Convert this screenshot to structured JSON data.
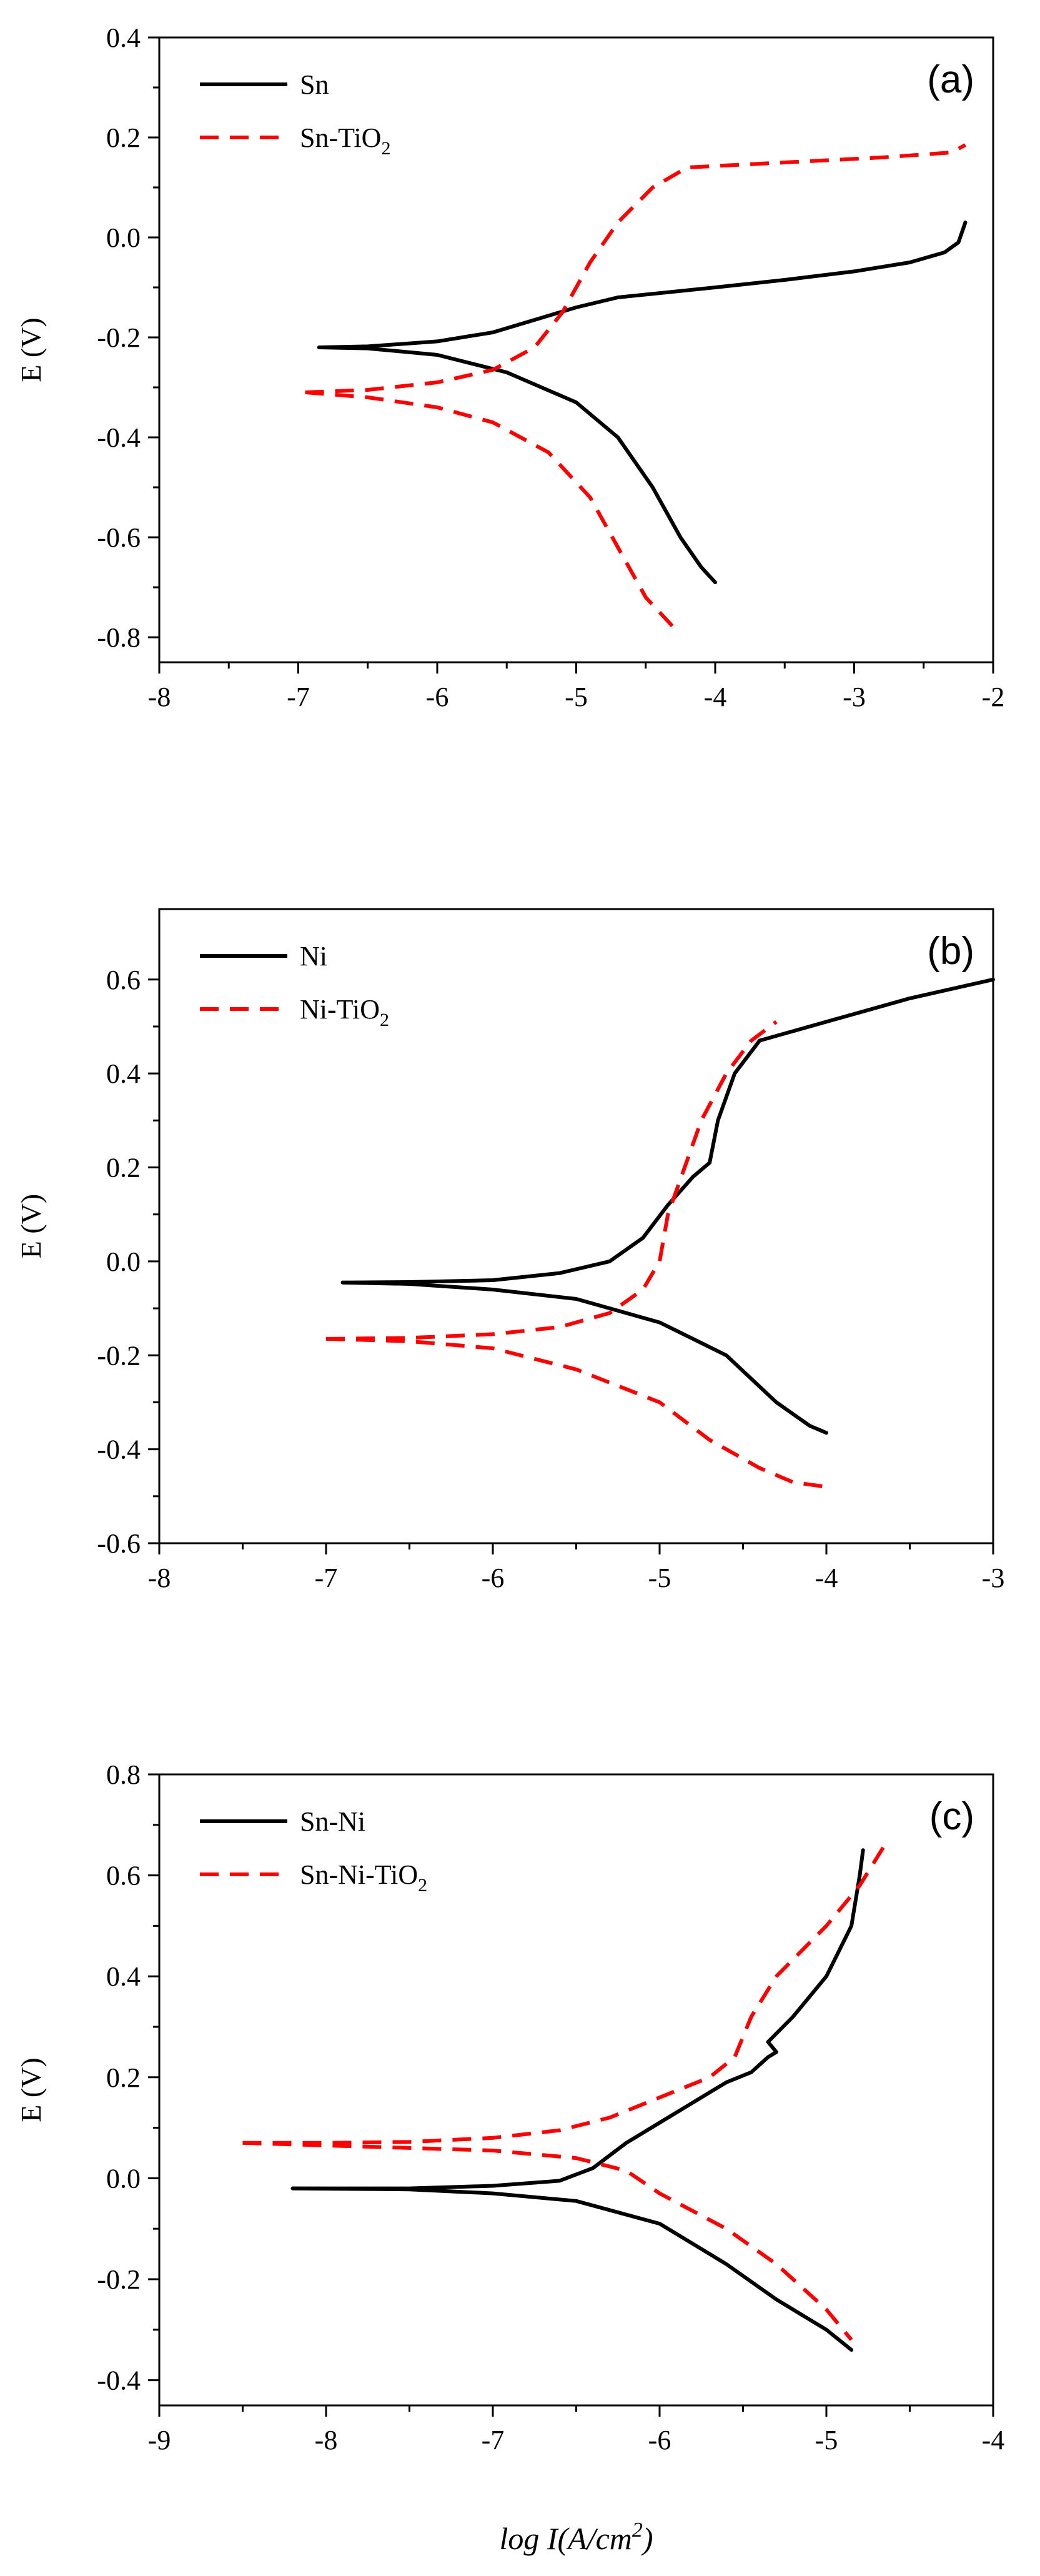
{
  "chart_data": [
    {
      "type": "line",
      "panel_label": "(a)",
      "xlabel": "",
      "ylabel": "E (V)",
      "xlim": [
        -8,
        -2
      ],
      "ylim": [
        -0.85,
        0.4
      ],
      "xticks": [
        -8,
        -7,
        -6,
        -5,
        -4,
        -3,
        -2
      ],
      "yticks": [
        0.4,
        0.2,
        0.0,
        -0.2,
        -0.4,
        -0.6,
        -0.8
      ],
      "xtick_labels": [
        "-8",
        "-7",
        "-6",
        "-5",
        "-4",
        "-3",
        "-2"
      ],
      "ytick_labels": [
        "0.4",
        "0.2",
        "0.0",
        "-0.2",
        "-0.4",
        "-0.6",
        "-0.8"
      ],
      "legend_position": "top-left",
      "series": [
        {
          "name": "Sn",
          "legend_main": "Sn",
          "legend_sub": "",
          "color": "#000000",
          "style": "solid",
          "branches": [
            [
              [
                -6.85,
                -0.22
              ],
              [
                -6.5,
                -0.218
              ],
              [
                -6.0,
                -0.208
              ],
              [
                -5.6,
                -0.19
              ],
              [
                -5.3,
                -0.165
              ],
              [
                -5.0,
                -0.14
              ],
              [
                -4.7,
                -0.12
              ],
              [
                -4.0,
                -0.1
              ],
              [
                -3.5,
                -0.085
              ],
              [
                -3.0,
                -0.068
              ],
              [
                -2.6,
                -0.05
              ],
              [
                -2.35,
                -0.03
              ],
              [
                -2.25,
                -0.01
              ],
              [
                -2.2,
                0.03
              ]
            ],
            [
              [
                -6.85,
                -0.22
              ],
              [
                -6.5,
                -0.222
              ],
              [
                -6.0,
                -0.235
              ],
              [
                -5.5,
                -0.27
              ],
              [
                -5.0,
                -0.33
              ],
              [
                -4.7,
                -0.4
              ],
              [
                -4.45,
                -0.5
              ],
              [
                -4.25,
                -0.6
              ],
              [
                -4.1,
                -0.66
              ],
              [
                -4.0,
                -0.69
              ]
            ]
          ]
        },
        {
          "name": "Sn-TiO2",
          "legend_main": "Sn-TiO",
          "legend_sub": "2",
          "color": "#ff0000",
          "style": "dashed",
          "branches": [
            [
              [
                -6.95,
                -0.31
              ],
              [
                -6.5,
                -0.305
              ],
              [
                -6.0,
                -0.29
              ],
              [
                -5.6,
                -0.265
              ],
              [
                -5.3,
                -0.22
              ],
              [
                -5.1,
                -0.15
              ],
              [
                -4.9,
                -0.05
              ],
              [
                -4.7,
                0.03
              ],
              [
                -4.45,
                0.1
              ],
              [
                -4.2,
                0.14
              ],
              [
                -3.5,
                0.15
              ],
              [
                -2.8,
                0.16
              ],
              [
                -2.3,
                0.17
              ],
              [
                -2.2,
                0.185
              ]
            ],
            [
              [
                -6.95,
                -0.31
              ],
              [
                -6.5,
                -0.32
              ],
              [
                -6.0,
                -0.34
              ],
              [
                -5.6,
                -0.37
              ],
              [
                -5.2,
                -0.43
              ],
              [
                -4.9,
                -0.52
              ],
              [
                -4.7,
                -0.62
              ],
              [
                -4.5,
                -0.72
              ],
              [
                -4.3,
                -0.78
              ]
            ]
          ]
        }
      ]
    },
    {
      "type": "line",
      "panel_label": "(b)",
      "xlabel": "",
      "ylabel": "E (V)",
      "xlim": [
        -8,
        -3
      ],
      "ylim": [
        -0.6,
        0.75
      ],
      "xticks": [
        -8,
        -7,
        -6,
        -5,
        -4,
        -3
      ],
      "yticks": [
        0.6,
        0.4,
        0.2,
        0.0,
        -0.2,
        -0.4,
        -0.6
      ],
      "xtick_labels": [
        "-8",
        "-7",
        "-6",
        "-5",
        "-4",
        "-3"
      ],
      "ytick_labels": [
        "0.6",
        "0.4",
        "0.2",
        "0.0",
        "-0.2",
        "-0.4",
        "-0.6"
      ],
      "legend_position": "top-left",
      "series": [
        {
          "name": "Ni",
          "legend_main": "Ni",
          "legend_sub": "",
          "color": "#000000",
          "style": "solid",
          "branches": [
            [
              [
                -6.9,
                -0.045
              ],
              [
                -6.5,
                -0.044
              ],
              [
                -6.0,
                -0.04
              ],
              [
                -5.6,
                -0.025
              ],
              [
                -5.3,
                0.0
              ],
              [
                -5.1,
                0.05
              ],
              [
                -4.95,
                0.12
              ],
              [
                -4.8,
                0.18
              ],
              [
                -4.7,
                0.21
              ],
              [
                -4.65,
                0.3
              ],
              [
                -4.55,
                0.4
              ],
              [
                -4.4,
                0.47
              ],
              [
                -4.0,
                0.51
              ],
              [
                -3.5,
                0.56
              ],
              [
                -3.0,
                0.6
              ]
            ],
            [
              [
                -6.9,
                -0.045
              ],
              [
                -6.5,
                -0.048
              ],
              [
                -6.0,
                -0.06
              ],
              [
                -5.5,
                -0.08
              ],
              [
                -5.0,
                -0.13
              ],
              [
                -4.6,
                -0.2
              ],
              [
                -4.3,
                -0.3
              ],
              [
                -4.1,
                -0.35
              ],
              [
                -4.0,
                -0.365
              ]
            ]
          ]
        },
        {
          "name": "Ni-TiO2",
          "legend_main": "Ni-TiO",
          "legend_sub": "2",
          "color": "#ff0000",
          "style": "dashed",
          "branches": [
            [
              [
                -7.0,
                -0.165
              ],
              [
                -6.5,
                -0.163
              ],
              [
                -6.0,
                -0.155
              ],
              [
                -5.6,
                -0.14
              ],
              [
                -5.3,
                -0.11
              ],
              [
                -5.1,
                -0.06
              ],
              [
                -5.0,
                0.0
              ],
              [
                -4.95,
                0.1
              ],
              [
                -4.85,
                0.2
              ],
              [
                -4.75,
                0.3
              ],
              [
                -4.6,
                0.4
              ],
              [
                -4.45,
                0.47
              ],
              [
                -4.3,
                0.51
              ]
            ],
            [
              [
                -7.0,
                -0.165
              ],
              [
                -6.5,
                -0.17
              ],
              [
                -6.0,
                -0.185
              ],
              [
                -5.5,
                -0.23
              ],
              [
                -5.0,
                -0.3
              ],
              [
                -4.7,
                -0.38
              ],
              [
                -4.4,
                -0.44
              ],
              [
                -4.2,
                -0.47
              ],
              [
                -4.0,
                -0.48
              ]
            ]
          ]
        }
      ]
    },
    {
      "type": "line",
      "panel_label": "(c)",
      "xlabel": "log I(A/cm²)",
      "ylabel": "E (V)",
      "xlim": [
        -9,
        -4
      ],
      "ylim": [
        -0.45,
        0.8
      ],
      "xticks": [
        -9,
        -8,
        -7,
        -6,
        -5,
        -4
      ],
      "yticks": [
        0.8,
        0.6,
        0.4,
        0.2,
        0.0,
        -0.2,
        -0.4
      ],
      "xtick_labels": [
        "-9",
        "-8",
        "-7",
        "-6",
        "-5",
        "-4"
      ],
      "ytick_labels": [
        "0.8",
        "0.6",
        "0.4",
        "0.2",
        "0.0",
        "-0.2",
        "-0.4"
      ],
      "legend_position": "top-left",
      "series": [
        {
          "name": "Sn-Ni",
          "legend_main": "Sn-Ni",
          "legend_sub": "",
          "color": "#000000",
          "style": "solid",
          "branches": [
            [
              [
                -8.2,
                -0.02
              ],
              [
                -7.5,
                -0.02
              ],
              [
                -7.0,
                -0.015
              ],
              [
                -6.6,
                -0.005
              ],
              [
                -6.4,
                0.02
              ],
              [
                -6.2,
                0.07
              ],
              [
                -6.0,
                0.11
              ],
              [
                -5.8,
                0.15
              ],
              [
                -5.6,
                0.19
              ],
              [
                -5.45,
                0.21
              ],
              [
                -5.35,
                0.24
              ],
              [
                -5.3,
                0.25
              ],
              [
                -5.35,
                0.27
              ],
              [
                -5.2,
                0.32
              ],
              [
                -5.0,
                0.4
              ],
              [
                -4.85,
                0.5
              ],
              [
                -4.8,
                0.6
              ],
              [
                -4.78,
                0.65
              ]
            ],
            [
              [
                -8.2,
                -0.02
              ],
              [
                -7.5,
                -0.022
              ],
              [
                -7.0,
                -0.03
              ],
              [
                -6.5,
                -0.045
              ],
              [
                -6.0,
                -0.09
              ],
              [
                -5.6,
                -0.17
              ],
              [
                -5.3,
                -0.24
              ],
              [
                -5.0,
                -0.3
              ],
              [
                -4.85,
                -0.34
              ]
            ]
          ]
        },
        {
          "name": "Sn-Ni-TiO2",
          "legend_main": "Sn-Ni-TiO",
          "legend_sub": "2",
          "color": "#ff0000",
          "style": "dashed",
          "branches": [
            [
              [
                -8.5,
                0.07
              ],
              [
                -8.0,
                0.07
              ],
              [
                -7.5,
                0.072
              ],
              [
                -7.0,
                0.08
              ],
              [
                -6.6,
                0.095
              ],
              [
                -6.3,
                0.12
              ],
              [
                -6.0,
                0.16
              ],
              [
                -5.7,
                0.2
              ],
              [
                -5.55,
                0.24
              ],
              [
                -5.45,
                0.32
              ],
              [
                -5.3,
                0.4
              ],
              [
                -5.0,
                0.5
              ],
              [
                -4.8,
                0.58
              ],
              [
                -4.65,
                0.66
              ]
            ],
            [
              [
                -8.5,
                0.07
              ],
              [
                -8.0,
                0.065
              ],
              [
                -7.5,
                0.06
              ],
              [
                -7.0,
                0.055
              ],
              [
                -6.5,
                0.04
              ],
              [
                -6.2,
                0.015
              ],
              [
                -6.0,
                -0.03
              ],
              [
                -5.6,
                -0.1
              ],
              [
                -5.3,
                -0.17
              ],
              [
                -5.0,
                -0.26
              ],
              [
                -4.85,
                -0.32
              ]
            ]
          ]
        }
      ]
    }
  ]
}
